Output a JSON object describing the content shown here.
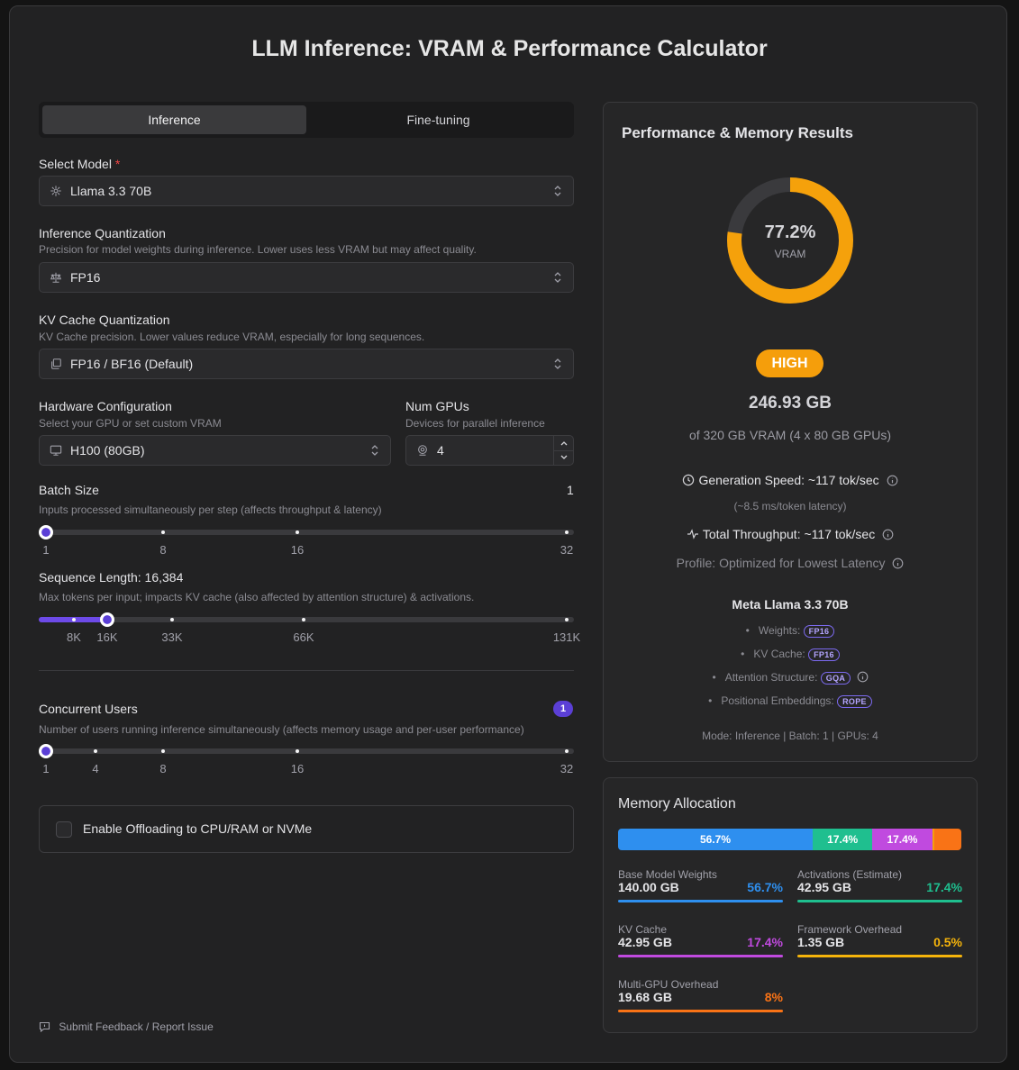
{
  "title": "LLM Inference: VRAM & Performance Calculator",
  "tabs": [
    {
      "label": "Inference",
      "active": true
    },
    {
      "label": "Fine-tuning",
      "active": false
    }
  ],
  "model": {
    "label": "Select Model",
    "required_mark": "*",
    "value": "Llama 3.3 70B"
  },
  "inference_quant": {
    "label": "Inference Quantization",
    "hint": "Precision for model weights during inference. Lower uses less VRAM but may affect quality.",
    "value": "FP16"
  },
  "kv_quant": {
    "label": "KV Cache Quantization",
    "hint": "KV Cache precision. Lower values reduce VRAM, especially for long sequences.",
    "value": "FP16 / BF16 (Default)"
  },
  "hardware": {
    "label": "Hardware Configuration",
    "hint": "Select your GPU or set custom VRAM",
    "value": "H100 (80GB)"
  },
  "num_gpus": {
    "label": "Num GPUs",
    "hint": "Devices for parallel inference",
    "value": "4"
  },
  "batch": {
    "label": "Batch Size",
    "value": "1",
    "hint": "Inputs processed simultaneously per step (affects throughput & latency)",
    "ticks": [
      "1",
      "8",
      "16",
      "32"
    ],
    "current": 1
  },
  "seq": {
    "label": "Sequence Length: 16,384",
    "hint": "Max tokens per input; impacts KV cache (also affected by attention structure) & activations.",
    "ticks": [
      "8K",
      "16K",
      "33K",
      "66K",
      "131K"
    ],
    "current": 16384
  },
  "users": {
    "label": "Concurrent Users",
    "badge": "1",
    "hint": "Number of users running inference simultaneously (affects memory usage and per-user performance)",
    "ticks": [
      "1",
      "4",
      "8",
      "16",
      "32"
    ],
    "current": 1
  },
  "offload": {
    "label": "Enable Offloading to CPU/RAM or NVMe",
    "checked": false
  },
  "feedback": "Submit Feedback / Report Issue",
  "results": {
    "title": "Performance & Memory Results",
    "gauge_pct": "77.2%",
    "gauge_value": 77.2,
    "gauge_label": "VRAM",
    "level": "HIGH",
    "total": "246.93 GB",
    "of_total": "of 320 GB VRAM (4 x 80 GB GPUs)",
    "gen_speed": "Generation Speed: ~117 tok/sec",
    "latency": "(~8.5 ms/token latency)",
    "throughput": "Total Throughput: ~117 tok/sec",
    "profile": "Profile: Optimized for Lowest Latency",
    "model_name": "Meta Llama 3.3 70B",
    "weights_label": "Weights:",
    "weights_tag": "FP16",
    "kv_label": "KV Cache:",
    "kv_tag": "FP16",
    "attn_label": "Attention Structure:",
    "attn_tag": "GQA",
    "pos_label": "Positional Embeddings:",
    "pos_tag": "ROPE",
    "mode_line": "Mode: Inference | Batch: 1 | GPUs: 4"
  },
  "memory": {
    "title": "Memory Allocation",
    "bar": [
      {
        "pct_label": "56.7%",
        "value": 56.7,
        "color": "#2e8fef"
      },
      {
        "pct_label": "17.4%",
        "value": 17.4,
        "color": "#1fbf8f"
      },
      {
        "pct_label": "17.4%",
        "value": 17.4,
        "color": "#c04adf"
      },
      {
        "pct_label": "",
        "value": 0.5,
        "color": "#f59e0b"
      },
      {
        "pct_label": "",
        "value": 8.0,
        "color": "#f97316"
      }
    ],
    "items": [
      {
        "label": "Base Model Weights",
        "value": "140.00 GB",
        "pct": "56.7%",
        "color": "#2e8fef"
      },
      {
        "label": "Activations (Estimate)",
        "value": "42.95 GB",
        "pct": "17.4%",
        "color": "#1fbf8f"
      },
      {
        "label": "KV Cache",
        "value": "42.95 GB",
        "pct": "17.4%",
        "color": "#c04adf"
      },
      {
        "label": "Framework Overhead",
        "value": "1.35 GB",
        "pct": "0.5%",
        "color": "#f5b40b"
      },
      {
        "label": "Multi-GPU Overhead",
        "value": "19.68 GB",
        "pct": "8%",
        "color": "#f97316"
      }
    ]
  }
}
